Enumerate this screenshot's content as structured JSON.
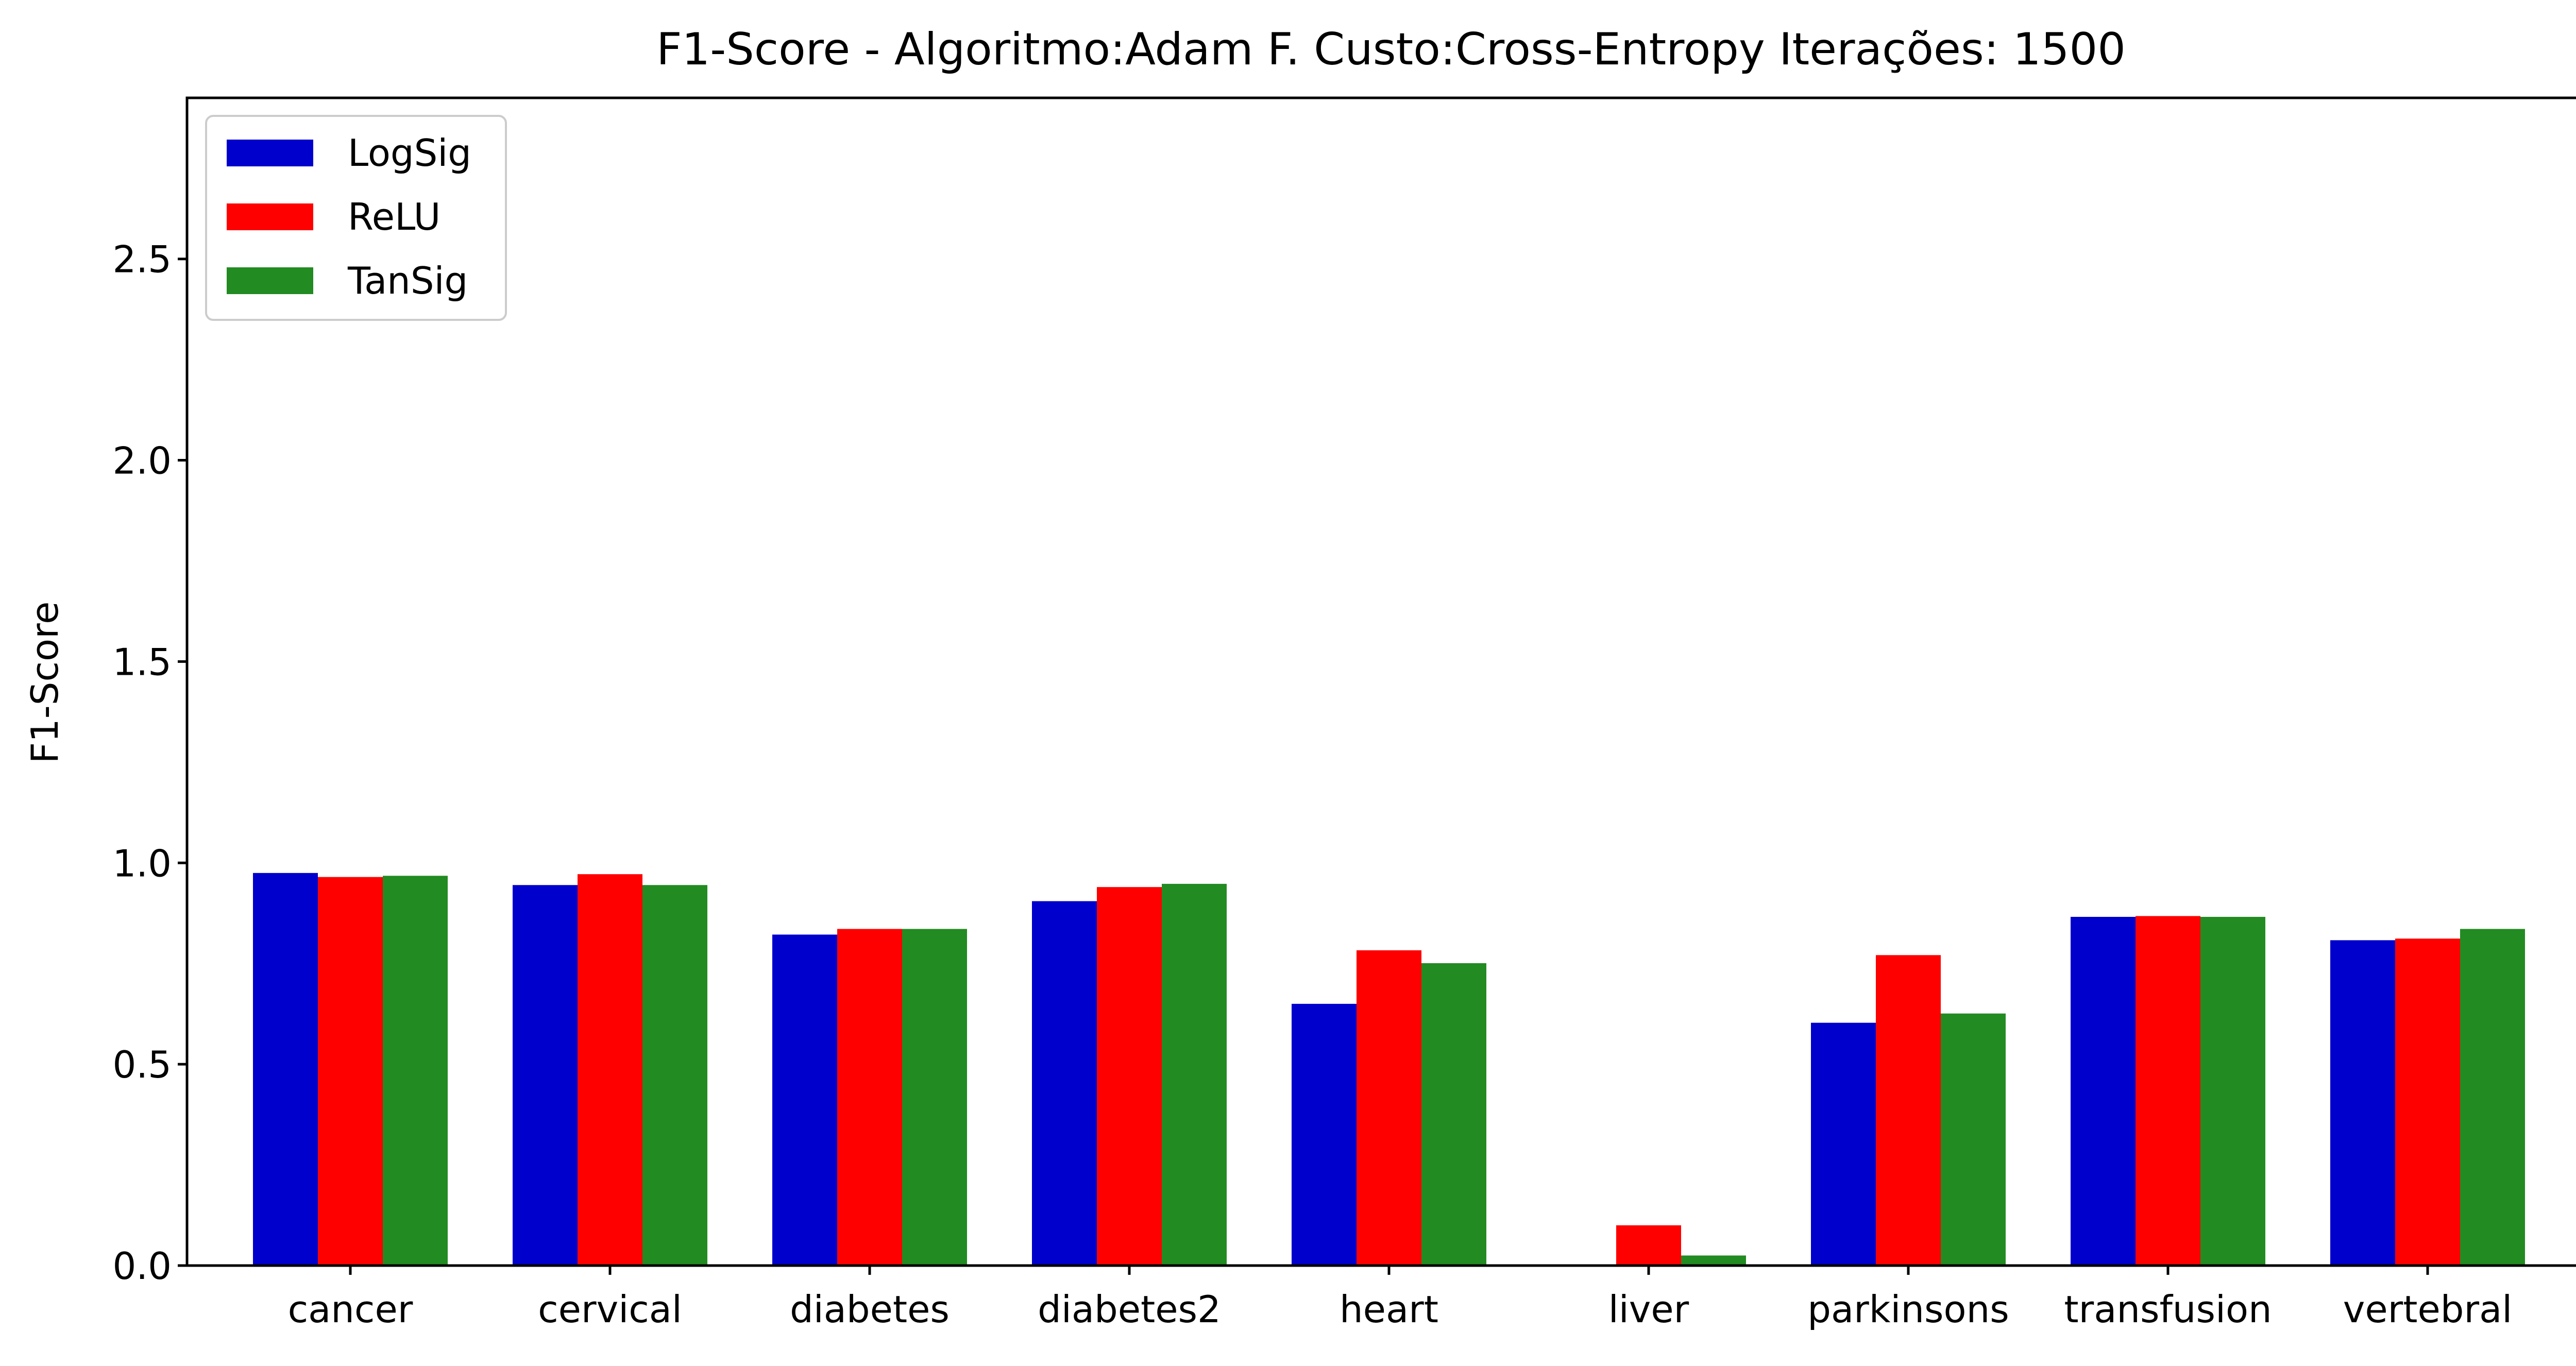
{
  "chart_data": {
    "type": "bar",
    "title": "F1-Score - Algoritmo:Adam F. Custo:Cross-Entropy Iterações: 1500",
    "xlabel": "",
    "ylabel": "F1-Score",
    "ylim": [
      0,
      2.9
    ],
    "yticks": [
      "0.0",
      "0.5",
      "1.0",
      "1.5",
      "2.0",
      "2.5"
    ],
    "categories": [
      "cancer",
      "cervical",
      "diabetes",
      "diabetes2",
      "heart",
      "liver",
      "parkinsons",
      "transfusion",
      "vertebral"
    ],
    "series": [
      {
        "name": "LogSig",
        "color": "#0000cc",
        "values": [
          0.975,
          0.945,
          0.822,
          0.905,
          0.65,
          0.0,
          0.603,
          0.866,
          0.808
        ]
      },
      {
        "name": "ReLU",
        "color": "#ff0000",
        "values": [
          0.965,
          0.972,
          0.836,
          0.94,
          0.783,
          0.1,
          0.771,
          0.868,
          0.812
        ]
      },
      {
        "name": "TanSig",
        "color": "#228b22",
        "values": [
          0.968,
          0.945,
          0.836,
          0.948,
          0.751,
          0.025,
          0.626,
          0.866,
          0.836
        ]
      }
    ],
    "legend_position": "top-left",
    "grid": false
  }
}
